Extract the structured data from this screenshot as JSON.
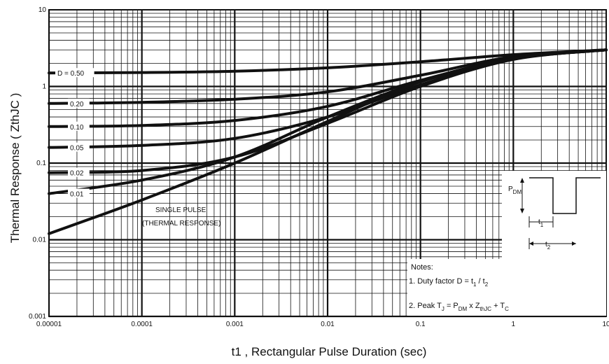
{
  "chart_data": {
    "type": "line",
    "title": "",
    "xlabel": "t1 , Rectangular Pulse Duration (sec)",
    "ylabel": "Thermal Response ( ZthJC )",
    "x_scale": "log",
    "y_scale": "log",
    "xlim": [
      1e-05,
      10
    ],
    "ylim": [
      0.001,
      10
    ],
    "grid": true,
    "x_ticks": [
      "0.00001",
      "0.0001",
      "0.001",
      "0.01",
      "0.1",
      "1",
      "10"
    ],
    "y_ticks": [
      "0.001",
      "0.01",
      "0.1",
      "1",
      "10"
    ],
    "series": [
      {
        "name": "D = 0.50",
        "x": [
          1e-05,
          0.0001,
          0.001,
          0.01,
          0.1,
          1,
          10
        ],
        "y": [
          1.5,
          1.52,
          1.58,
          1.75,
          2.1,
          2.6,
          3.0
        ]
      },
      {
        "name": "0.20",
        "x": [
          1e-05,
          0.0001,
          0.001,
          0.01,
          0.1,
          1,
          10
        ],
        "y": [
          0.6,
          0.62,
          0.68,
          0.85,
          1.4,
          2.45,
          3.0
        ]
      },
      {
        "name": "0.10",
        "x": [
          1e-05,
          0.0001,
          0.001,
          0.01,
          0.1,
          1,
          10
        ],
        "y": [
          0.3,
          0.31,
          0.36,
          0.55,
          1.2,
          2.35,
          3.0
        ]
      },
      {
        "name": "0.05",
        "x": [
          1e-05,
          0.0001,
          0.001,
          0.01,
          0.1,
          1,
          10
        ],
        "y": [
          0.16,
          0.17,
          0.21,
          0.4,
          1.05,
          2.3,
          3.0
        ]
      },
      {
        "name": "0.02",
        "x": [
          1e-05,
          0.0001,
          0.001,
          0.01,
          0.1,
          1,
          10
        ],
        "y": [
          0.075,
          0.08,
          0.12,
          0.33,
          1.0,
          2.25,
          3.0
        ]
      },
      {
        "name": "0.01",
        "x": [
          1e-05,
          0.0001,
          0.001,
          0.01,
          0.1,
          1,
          10
        ],
        "y": [
          0.04,
          0.06,
          0.12,
          0.4,
          1.15,
          2.3,
          3.0
        ]
      },
      {
        "name": "SINGLE PULSE (THERMAL RESPONSE)",
        "x": [
          1e-05,
          0.0001,
          0.001,
          0.01,
          0.1,
          1,
          10
        ],
        "y": [
          0.012,
          0.033,
          0.1,
          0.35,
          1.15,
          2.3,
          3.0
        ]
      }
    ],
    "curve_labels": [
      "D = 0.50",
      "0.20",
      "0.10",
      "0.05",
      "0.02",
      "0.01"
    ],
    "annotation": [
      "SINGLE PULSE",
      "(THERMAL RESPONSE)"
    ],
    "inset": {
      "pdm_label": "P",
      "pdm_sub": "DM",
      "t1_label": "t",
      "t1_sub": "1",
      "t2_label": "t",
      "t2_sub": "2"
    },
    "notes": {
      "heading": "Notes:",
      "line1": "1. Duty factor D =  t",
      "line1_sub1": "1",
      "line1_mid": " / t",
      "line1_sub2": "2",
      "line2": "2. Peak T",
      "line2_sub1": "J",
      "line2_mid1": " = P",
      "line2_sub2": "DM",
      "line2_mid2": " x Z",
      "line2_sub3": "thJC",
      "line2_mid3": " + T",
      "line2_sub4": "C"
    }
  }
}
